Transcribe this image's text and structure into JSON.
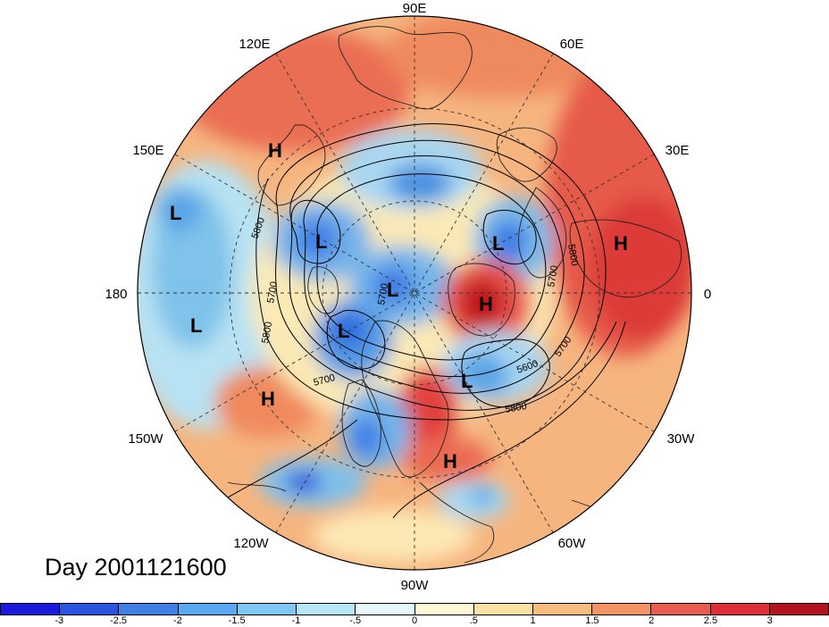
{
  "map": {
    "title": "Day 2001121600",
    "longitude_labels": {
      "lon_90e": "90E",
      "lon_120e": "120E",
      "lon_60e": "60E",
      "lon_150e": "150E",
      "lon_30e": "30E",
      "lon_180": "180",
      "lon_0": "0",
      "lon_150w": "150W",
      "lon_30w": "30W",
      "lon_120w": "120W",
      "lon_60w": "60W",
      "lon_90w": "90W"
    },
    "pressure_centers": [
      {
        "id": "h-east-asia",
        "label": "H"
      },
      {
        "id": "l-pacific-west",
        "label": "L"
      },
      {
        "id": "l-pacific-south",
        "label": "L"
      },
      {
        "id": "h-pacific-south",
        "label": "H"
      },
      {
        "id": "l-bering",
        "label": "L"
      },
      {
        "id": "l-arctic",
        "label": "L"
      },
      {
        "id": "l-alaska",
        "label": "L"
      },
      {
        "id": "h-greenland",
        "label": "H"
      },
      {
        "id": "l-scandinavia",
        "label": "L"
      },
      {
        "id": "h-russia",
        "label": "H"
      },
      {
        "id": "l-atlantic",
        "label": "L"
      },
      {
        "id": "h-atlantic-south",
        "label": "H"
      }
    ],
    "contour_labels": [
      "5800",
      "5700",
      "5800",
      "5700",
      "5700",
      "5800",
      "5700",
      "5600",
      "5700",
      "5800"
    ],
    "colors": {
      "strong_neg": "#2020c8",
      "neg": "#4f9be8",
      "weak_neg": "#a8dcf2",
      "neutral": "#fdf5d0",
      "weak_pos": "#f9c98a",
      "pos": "#f08a5d",
      "strong_pos": "#d7232a"
    }
  },
  "colorbar": {
    "tick_labels": [
      "-3",
      "-2.5",
      "-2",
      "-1.5",
      "-1",
      "-.5",
      "0",
      ".5",
      "1",
      "1.5",
      "2",
      "2.5",
      "3"
    ],
    "colors": [
      "#1a1adc",
      "#2a55e0",
      "#3f7fe6",
      "#5aa8ef",
      "#7fc8f3",
      "#b4e6f6",
      "#e4f7fa",
      "#fdf7d3",
      "#fbe1a4",
      "#f8bd7e",
      "#f29465",
      "#ea5d4e",
      "#dc2f37",
      "#b3131f"
    ]
  }
}
